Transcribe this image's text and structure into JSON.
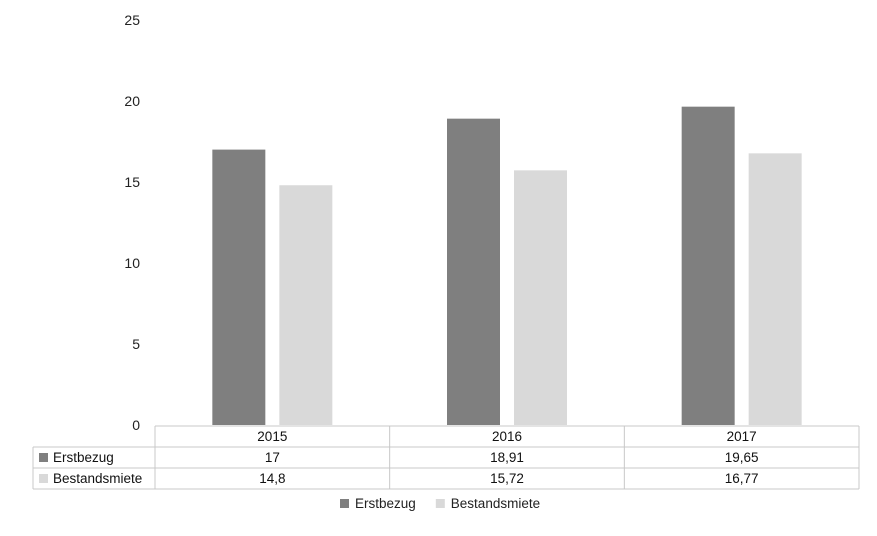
{
  "chart_data": {
    "type": "bar",
    "categories": [
      "2015",
      "2016",
      "2017"
    ],
    "series": [
      {
        "name": "Erstbezug",
        "values": [
          17,
          18.91,
          19.65
        ],
        "labels": [
          "17",
          "18,91",
          "19,65"
        ],
        "color": "#7f7f7f"
      },
      {
        "name": "Bestandsmiete",
        "values": [
          14.8,
          15.72,
          16.77
        ],
        "labels": [
          "14,8",
          "15,72",
          "16,77"
        ],
        "color": "#d9d9d9"
      }
    ],
    "yticks": [
      "0",
      "5",
      "10",
      "15",
      "20",
      "25"
    ],
    "ylim": [
      0,
      25
    ],
    "grid": false,
    "data_table": true,
    "legend": "bottom"
  }
}
